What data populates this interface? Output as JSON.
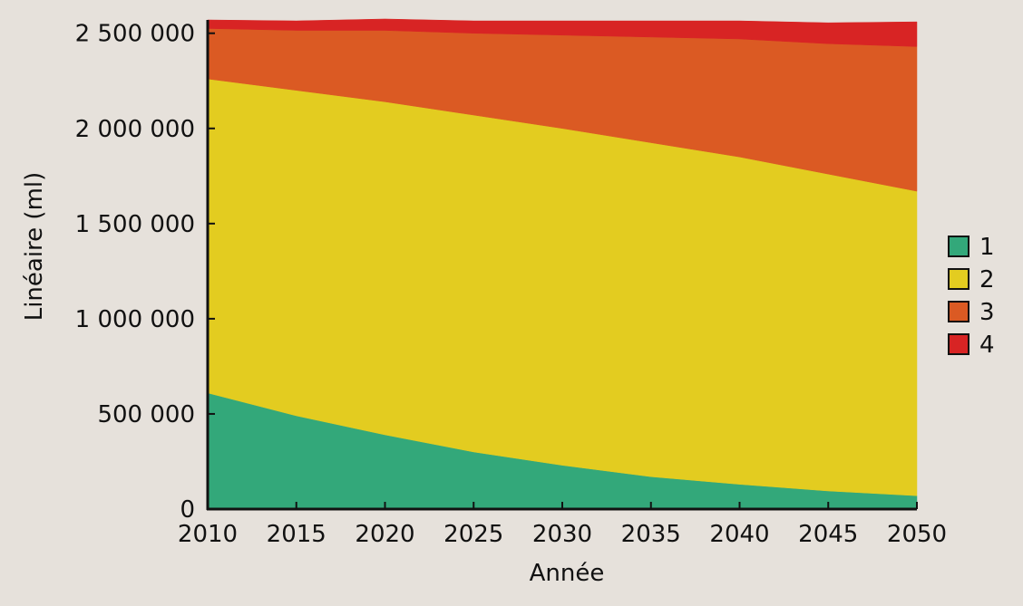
{
  "chart_data": {
    "type": "area",
    "stacked": true,
    "xlabel": "Année",
    "ylabel": "Linéaire (ml)",
    "x": [
      2010,
      2015,
      2020,
      2025,
      2030,
      2035,
      2040,
      2045,
      2050
    ],
    "xlim": [
      2010,
      2050
    ],
    "ylim": [
      0,
      2570000
    ],
    "x_ticks": [
      2010,
      2015,
      2020,
      2025,
      2030,
      2035,
      2040,
      2045,
      2050
    ],
    "y_ticks": [
      0,
      500000,
      1000000,
      1500000,
      2000000,
      2500000
    ],
    "y_tick_labels": [
      "0",
      "500 000",
      "1 000 000",
      "1 500 000",
      "2 000 000",
      "2 500 000"
    ],
    "grid": false,
    "legend_position": "right",
    "series": [
      {
        "name": "1",
        "color": "#33a87a",
        "values": [
          610000,
          490000,
          390000,
          300000,
          230000,
          170000,
          130000,
          95000,
          70000
        ]
      },
      {
        "name": "2",
        "color": "#e3cc20",
        "values": [
          1650000,
          1710000,
          1750000,
          1770000,
          1770000,
          1755000,
          1720000,
          1665000,
          1600000
        ]
      },
      {
        "name": "3",
        "color": "#db5a23",
        "values": [
          265000,
          315000,
          375000,
          430000,
          490000,
          555000,
          620000,
          685000,
          760000
        ]
      },
      {
        "name": "4",
        "color": "#d82424",
        "values": [
          45000,
          50000,
          60000,
          65000,
          75000,
          85000,
          95000,
          110000,
          130000
        ]
      }
    ]
  }
}
